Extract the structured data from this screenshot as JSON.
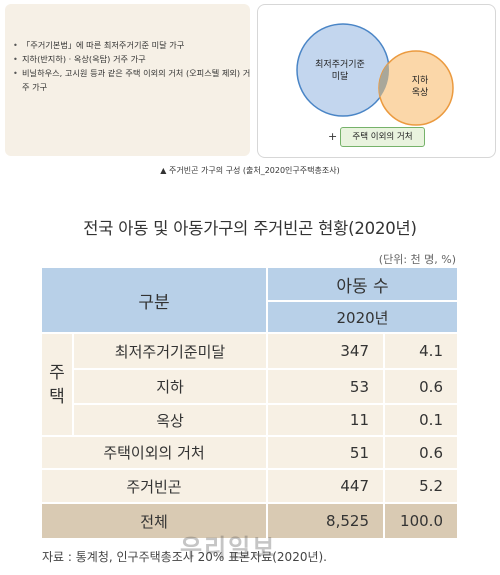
{
  "infographic": {
    "bullets": [
      "「주거기본법」에 따른 최저주거기준 미달 가구",
      "지하(반지하) · 옥상(옥탑) 거주 가구",
      "비닐하우스, 고시원 등과 같은 주택 이외의 거처 (오피스텔 제외) 거주 가구"
    ],
    "venn": {
      "left_label": "최저주거기준 미달",
      "right_label": "지하 옥상",
      "plus": "+",
      "tag": "주택 이외의 거처",
      "colors": {
        "left": "#c3d6ee",
        "right": "#fbd7a9",
        "overlap": "#a9a79a"
      }
    },
    "caption": "▲ 주거빈곤 가구의 구성 (출처_2020인구주택총조사)"
  },
  "table": {
    "title": "전국 아동 및 아동가구의 주거빈곤 현황(2020년)",
    "unit": "(단위: 천 명, %)",
    "header": {
      "category": "구분",
      "group": "아동 수",
      "year": "2020년"
    },
    "group_label": "주택",
    "rows": [
      {
        "label": "최저주거기준미달",
        "count": "347",
        "pct": "4.1"
      },
      {
        "label": "지하",
        "count": "53",
        "pct": "0.6"
      },
      {
        "label": "옥상",
        "count": "11",
        "pct": "0.1"
      },
      {
        "label": "주택이외의 거처",
        "count": "51",
        "pct": "0.6"
      },
      {
        "label": "주거빈곤",
        "count": "447",
        "pct": "5.2"
      },
      {
        "label": "전체",
        "count": "8,525",
        "pct": "100.0"
      }
    ],
    "colors": {
      "header": "#b8d0e8",
      "body": "#f7f0e4",
      "total": "#d9cab3",
      "grid": "#ffffff"
    }
  },
  "source": "자료 : 통계청, 인구주택총조사 20% 표본자료(2020년).",
  "watermark": "우리일보"
}
